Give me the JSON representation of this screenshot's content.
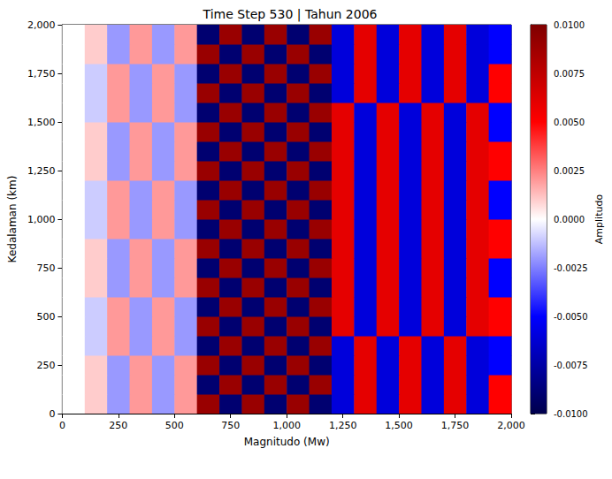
{
  "chart_data": {
    "type": "heatmap",
    "title": "Time Step 530 | Tahun 2006",
    "x_label": "Magnitudo (Mw)",
    "y_label": "Kedalaman (km)",
    "xlim": [
      0,
      2000
    ],
    "xticks": [
      0,
      250,
      500,
      750,
      1000,
      1250,
      1500,
      1750,
      2000
    ],
    "ylim": [
      0,
      2000
    ],
    "yticks": [
      0,
      250,
      500,
      750,
      1000,
      1250,
      1500,
      1750,
      2000
    ],
    "grid": false,
    "x": [
      50,
      150,
      250,
      350,
      450,
      550,
      650,
      750,
      850,
      950,
      1050,
      1150,
      1250,
      1350,
      1450,
      1550,
      1650,
      1750,
      1850,
      1950
    ],
    "y": [
      50,
      150,
      250,
      350,
      450,
      550,
      650,
      750,
      850,
      950,
      1050,
      1150,
      1250,
      1350,
      1450,
      1550,
      1650,
      1750,
      1850,
      1950
    ],
    "values": [
      [
        0,
        0.001,
        -0.002,
        0.002,
        -0.002,
        0.002,
        0.009,
        -0.009,
        0.009,
        -0.009,
        0.009,
        -0.009,
        -0.006,
        0.006,
        -0.006,
        0.006,
        -0.006,
        0.006,
        -0.006,
        0.005
      ],
      [
        0,
        0.001,
        -0.002,
        0.002,
        -0.002,
        0.002,
        -0.009,
        0.009,
        -0.009,
        0.009,
        -0.009,
        0.009,
        -0.006,
        0.006,
        -0.006,
        0.006,
        -0.006,
        0.006,
        -0.006,
        0.005
      ],
      [
        0,
        0.001,
        -0.002,
        0.002,
        -0.002,
        0.002,
        0.009,
        -0.009,
        0.009,
        -0.009,
        0.009,
        -0.009,
        -0.006,
        0.006,
        -0.006,
        0.006,
        -0.006,
        0.006,
        -0.006,
        -0.005
      ],
      [
        0,
        -0.001,
        0.002,
        -0.002,
        0.002,
        -0.002,
        -0.009,
        0.009,
        -0.009,
        0.009,
        -0.009,
        0.009,
        -0.006,
        0.006,
        -0.006,
        0.006,
        -0.006,
        0.006,
        -0.006,
        -0.005
      ],
      [
        0,
        -0.001,
        0.002,
        -0.002,
        0.002,
        -0.002,
        0.009,
        -0.009,
        0.009,
        -0.009,
        0.009,
        -0.009,
        0.006,
        -0.006,
        0.006,
        -0.006,
        0.006,
        -0.006,
        0.006,
        0.005
      ],
      [
        0,
        -0.001,
        0.002,
        -0.002,
        0.002,
        -0.002,
        -0.009,
        0.009,
        -0.009,
        0.009,
        -0.009,
        0.009,
        0.006,
        -0.006,
        0.006,
        -0.006,
        0.006,
        -0.006,
        0.006,
        0.005
      ],
      [
        0,
        0.001,
        -0.002,
        0.002,
        -0.002,
        0.002,
        0.009,
        -0.009,
        0.009,
        -0.009,
        0.009,
        -0.009,
        0.006,
        -0.006,
        0.006,
        -0.006,
        0.006,
        -0.006,
        0.006,
        -0.005
      ],
      [
        0,
        0.001,
        -0.002,
        0.002,
        -0.002,
        0.002,
        -0.009,
        0.009,
        -0.009,
        0.009,
        -0.009,
        0.009,
        0.006,
        -0.006,
        0.006,
        -0.006,
        0.006,
        -0.006,
        0.006,
        -0.005
      ],
      [
        0,
        0.001,
        -0.002,
        0.002,
        -0.002,
        0.002,
        0.009,
        -0.009,
        0.009,
        -0.009,
        0.009,
        -0.009,
        0.006,
        -0.006,
        0.006,
        -0.006,
        0.006,
        -0.006,
        0.006,
        0.005
      ],
      [
        0,
        -0.001,
        0.002,
        -0.002,
        0.002,
        -0.002,
        -0.009,
        0.009,
        -0.009,
        0.009,
        -0.009,
        0.009,
        0.006,
        -0.006,
        0.006,
        -0.006,
        0.006,
        -0.006,
        0.006,
        0.005
      ],
      [
        0,
        -0.001,
        0.002,
        -0.002,
        0.002,
        -0.002,
        0.009,
        -0.009,
        0.009,
        -0.009,
        0.009,
        -0.009,
        0.006,
        -0.006,
        0.006,
        -0.006,
        0.006,
        -0.006,
        0.006,
        -0.005
      ],
      [
        0,
        -0.001,
        0.002,
        -0.002,
        0.002,
        -0.002,
        -0.009,
        0.009,
        -0.009,
        0.009,
        -0.009,
        0.009,
        0.006,
        -0.006,
        0.006,
        -0.006,
        0.006,
        -0.006,
        0.006,
        -0.005
      ],
      [
        0,
        0.001,
        -0.002,
        0.002,
        -0.002,
        0.002,
        0.009,
        -0.009,
        0.009,
        -0.009,
        0.009,
        -0.009,
        0.006,
        -0.006,
        0.006,
        -0.006,
        0.006,
        -0.006,
        0.006,
        0.005
      ],
      [
        0,
        0.001,
        -0.002,
        0.002,
        -0.002,
        0.002,
        -0.009,
        0.009,
        -0.009,
        0.009,
        -0.009,
        0.009,
        0.006,
        -0.006,
        0.006,
        -0.006,
        0.006,
        -0.006,
        0.006,
        0.005
      ],
      [
        0,
        0.001,
        -0.002,
        0.002,
        -0.002,
        0.002,
        0.009,
        -0.009,
        0.009,
        -0.009,
        0.009,
        -0.009,
        0.006,
        -0.006,
        0.006,
        -0.006,
        0.006,
        -0.006,
        0.006,
        -0.005
      ],
      [
        0,
        -0.001,
        0.002,
        -0.002,
        0.002,
        -0.002,
        -0.009,
        0.009,
        -0.009,
        0.009,
        -0.009,
        0.009,
        0.006,
        -0.006,
        0.006,
        -0.006,
        0.006,
        -0.006,
        0.006,
        -0.005
      ],
      [
        0,
        -0.001,
        0.002,
        -0.002,
        0.002,
        -0.002,
        0.009,
        -0.009,
        0.009,
        -0.009,
        0.009,
        -0.009,
        -0.006,
        0.006,
        -0.006,
        0.006,
        -0.006,
        0.006,
        -0.006,
        0.005
      ],
      [
        0,
        -0.001,
        0.002,
        -0.002,
        0.002,
        -0.002,
        -0.009,
        0.009,
        -0.009,
        0.009,
        -0.009,
        0.009,
        -0.006,
        0.006,
        -0.006,
        0.006,
        -0.006,
        0.006,
        -0.006,
        0.005
      ],
      [
        0,
        0.001,
        -0.002,
        0.002,
        -0.002,
        0.002,
        0.009,
        -0.009,
        0.009,
        -0.009,
        0.009,
        -0.009,
        -0.006,
        0.006,
        -0.006,
        0.006,
        -0.006,
        0.006,
        -0.006,
        -0.005
      ],
      [
        0,
        0.001,
        -0.002,
        0.002,
        -0.002,
        0.002,
        -0.009,
        0.009,
        -0.009,
        0.009,
        -0.009,
        0.009,
        -0.006,
        0.006,
        -0.006,
        0.006,
        -0.006,
        0.006,
        -0.006,
        -0.005
      ]
    ],
    "colorbar": {
      "label": "Amplitudo",
      "range": [
        -0.01,
        0.01
      ],
      "ticks": [
        {
          "value": -0.01,
          "label": "-0.0100"
        },
        {
          "value": -0.0075,
          "label": "-0.0075"
        },
        {
          "value": -0.005,
          "label": "-0.0050"
        },
        {
          "value": -0.0025,
          "label": "-0.0025"
        },
        {
          "value": 0,
          "label": "0.0000"
        },
        {
          "value": 0.0025,
          "label": "0.0025"
        },
        {
          "value": 0.005,
          "label": "0.0050"
        },
        {
          "value": 0.0075,
          "label": "0.0075"
        },
        {
          "value": 0.01,
          "label": "0.0100"
        }
      ]
    }
  }
}
